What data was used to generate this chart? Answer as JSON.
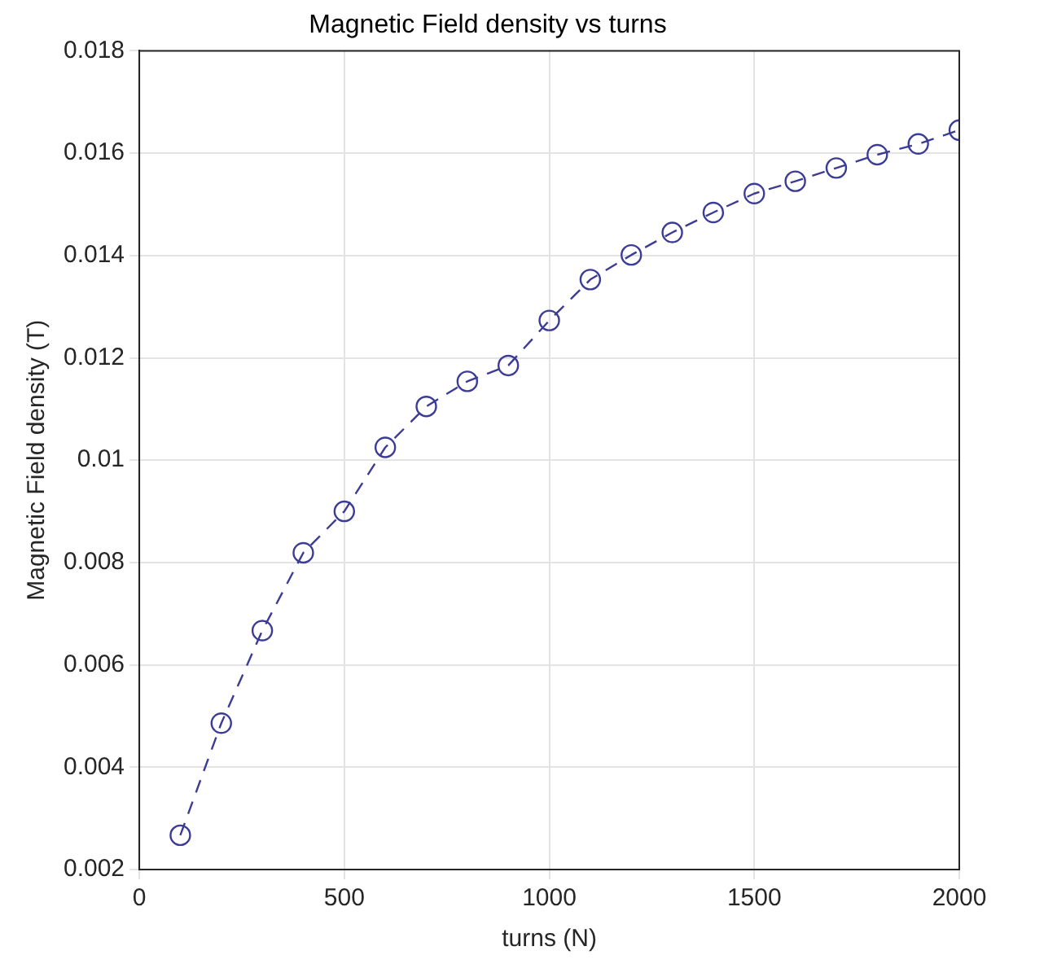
{
  "chart_data": {
    "type": "line",
    "title": "Magnetic Field density vs turns",
    "xlabel": "turns (N)",
    "ylabel": "Magnetic Field density (T)",
    "x": [
      100,
      200,
      300,
      400,
      500,
      600,
      700,
      800,
      900,
      1000,
      1100,
      1200,
      1300,
      1400,
      1500,
      1600,
      1700,
      1800,
      1900,
      2000
    ],
    "series": [
      {
        "color": "#3c3c96",
        "values": [
          0.00267,
          0.00486,
          0.00667,
          0.00819,
          0.009,
          0.01025,
          0.01105,
          0.01154,
          0.01185,
          0.01273,
          0.01353,
          0.01401,
          0.01445,
          0.01484,
          0.01521,
          0.01545,
          0.01571,
          0.01597,
          0.01618,
          0.01645
        ]
      }
    ],
    "xlim": [
      0,
      2000
    ],
    "xticks": [
      0,
      500,
      1000,
      1500,
      2000
    ],
    "ylim": [
      0.002,
      0.018
    ],
    "yticks": [
      0.002,
      0.004,
      0.006,
      0.008,
      0.01,
      0.012,
      0.014,
      0.016,
      0.018
    ],
    "grid": true,
    "marker": "circle",
    "line_style": "dashed",
    "legend": false
  }
}
